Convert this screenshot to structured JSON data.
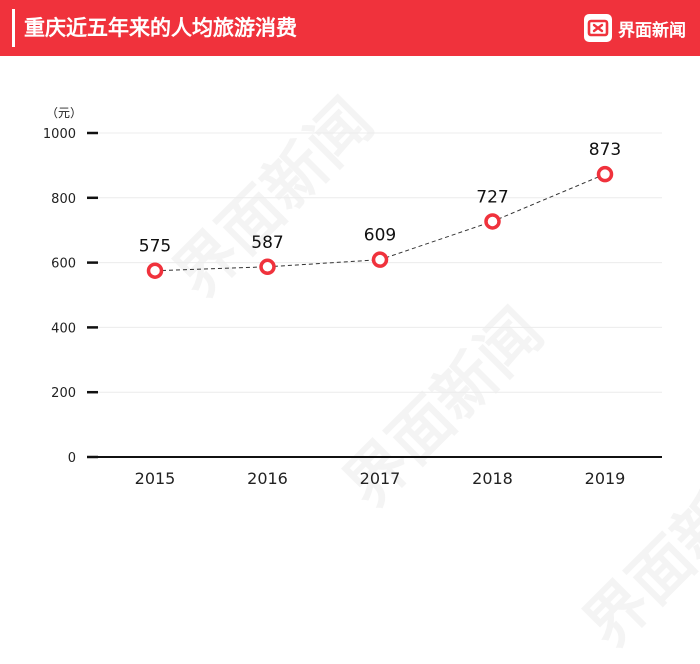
{
  "header": {
    "title": "重庆近五年来的人均旅游消费",
    "brand_name": "界面新闻",
    "accent_color": "#f0323c"
  },
  "watermark": {
    "text": "界面新闻"
  },
  "chart_data": {
    "type": "line",
    "title": "重庆近五年来的人均旅游消费",
    "unit_label": "（元）",
    "categories": [
      "2015",
      "2016",
      "2017",
      "2018",
      "2019"
    ],
    "series": [
      {
        "values": [
          575,
          587,
          609,
          727,
          873
        ],
        "color": "#f0323c"
      }
    ],
    "data_labels": [
      "575",
      "587",
      "609",
      "727",
      "873"
    ],
    "y_ticks": [
      0,
      200,
      400,
      600,
      800,
      1000
    ],
    "ylim": [
      0,
      1000
    ],
    "xlabel": "",
    "ylabel": "",
    "grid": true,
    "legend": "none"
  }
}
